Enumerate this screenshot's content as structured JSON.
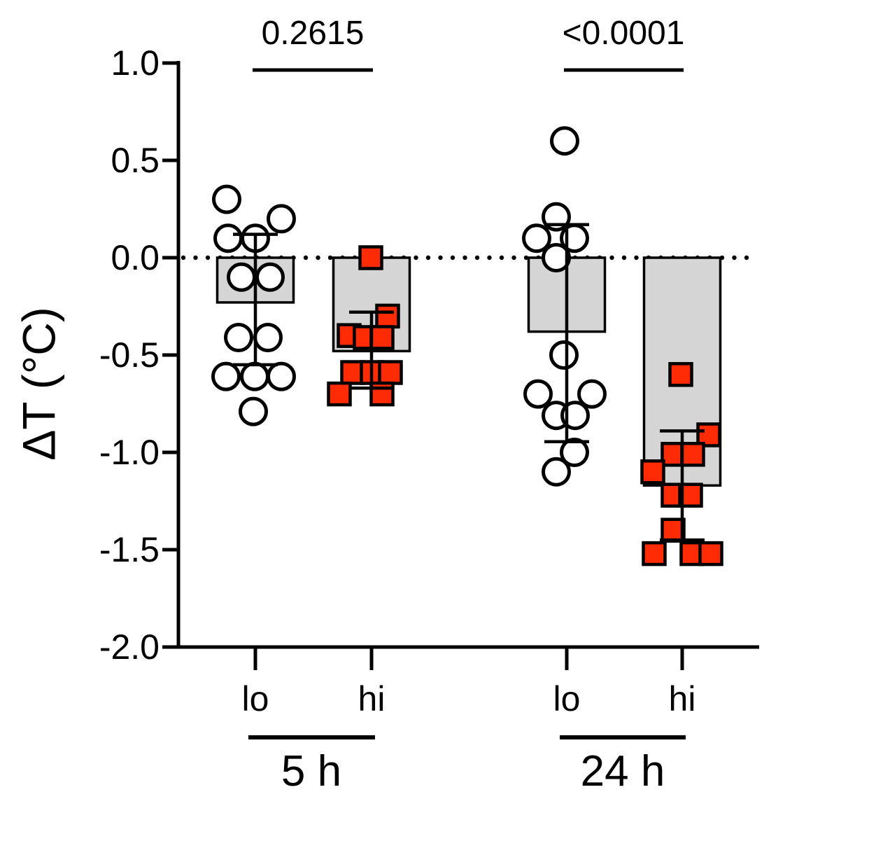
{
  "figure": {
    "background": "#ffffff"
  },
  "chart_data": {
    "type": "bar-scatter",
    "title": "",
    "xlabel": "",
    "ylabel": "ΔT (°C)",
    "ylim": [
      -2.0,
      1.0
    ],
    "yticks": [
      1.0,
      0.5,
      0.0,
      -0.5,
      -1.0,
      -1.5,
      -2.0
    ],
    "ytick_labels": [
      "1.0",
      "0.5",
      "0.0",
      "-0.5",
      "-1.0",
      "-1.5",
      "-2.0"
    ],
    "zero_line_style": "dotted",
    "grid": false,
    "legend": null,
    "colors": {
      "bar_fill": "#d5d5d5",
      "circle_fill": "#ffffff",
      "square_fill": "#ff2b05",
      "stroke": "#000000"
    },
    "groups": [
      {
        "label": "lo",
        "time": "5 h",
        "marker": "circle",
        "mean": -0.23,
        "err_top": 0.12,
        "err_bot": -0.55,
        "points": [
          {
            "v": 0.3,
            "dx": -41
          },
          {
            "v": 0.2,
            "dx": 37
          },
          {
            "v": 0.1,
            "dx": -39
          },
          {
            "v": 0.1,
            "dx": 0
          },
          {
            "v": -0.1,
            "dx": -20
          },
          {
            "v": -0.1,
            "dx": 21
          },
          {
            "v": -0.41,
            "dx": -24
          },
          {
            "v": -0.41,
            "dx": 18
          },
          {
            "v": -0.61,
            "dx": -42
          },
          {
            "v": -0.61,
            "dx": -1
          },
          {
            "v": -0.61,
            "dx": 37
          },
          {
            "v": -0.79,
            "dx": -3
          }
        ]
      },
      {
        "label": "hi",
        "time": "5 h",
        "marker": "square",
        "mean": -0.48,
        "err_top": -0.28,
        "err_bot": -0.67,
        "points": [
          {
            "v": 0.0,
            "dx": -1
          },
          {
            "v": -0.3,
            "dx": 23
          },
          {
            "v": -0.4,
            "dx": -32
          },
          {
            "v": -0.41,
            "dx": -9
          },
          {
            "v": -0.41,
            "dx": 15
          },
          {
            "v": -0.59,
            "dx": -27
          },
          {
            "v": -0.59,
            "dx": 1
          },
          {
            "v": -0.59,
            "dx": 27
          },
          {
            "v": -0.7,
            "dx": -46
          },
          {
            "v": -0.7,
            "dx": 15
          }
        ]
      },
      {
        "label": "lo",
        "time": "24 h",
        "marker": "circle",
        "mean": -0.38,
        "err_top": 0.17,
        "err_bot": -0.945,
        "points": [
          {
            "v": 0.6,
            "dx": -3
          },
          {
            "v": 0.21,
            "dx": -15
          },
          {
            "v": 0.1,
            "dx": -43
          },
          {
            "v": 0.1,
            "dx": 11
          },
          {
            "v": 0.0,
            "dx": -15
          },
          {
            "v": -0.5,
            "dx": -4
          },
          {
            "v": -0.7,
            "dx": -41
          },
          {
            "v": -0.7,
            "dx": 36
          },
          {
            "v": -0.81,
            "dx": -15
          },
          {
            "v": -0.81,
            "dx": 12
          },
          {
            "v": -1.0,
            "dx": 11
          },
          {
            "v": -1.1,
            "dx": -15
          }
        ]
      },
      {
        "label": "hi",
        "time": "24 h",
        "marker": "square",
        "mean": -1.17,
        "err_top": -0.89,
        "err_bot": -1.45,
        "points": [
          {
            "v": -0.6,
            "dx": -2
          },
          {
            "v": -0.91,
            "dx": 38
          },
          {
            "v": -1.01,
            "dx": -13
          },
          {
            "v": -1.01,
            "dx": 15
          },
          {
            "v": -1.1,
            "dx": -42
          },
          {
            "v": -1.22,
            "dx": -13
          },
          {
            "v": -1.22,
            "dx": 12
          },
          {
            "v": -1.4,
            "dx": -13
          },
          {
            "v": -1.52,
            "dx": -40
          },
          {
            "v": -1.52,
            "dx": 14
          },
          {
            "v": -1.52,
            "dx": 41
          }
        ]
      }
    ],
    "comparisons": [
      {
        "p_label": "0.2615",
        "group_a": 0,
        "group_b": 1
      },
      {
        "p_label": "<0.0001",
        "group_a": 2,
        "group_b": 3
      }
    ],
    "time_groups": [
      {
        "label": "5 h",
        "groups": [
          0,
          1
        ]
      },
      {
        "label": "24 h",
        "groups": [
          2,
          3
        ]
      }
    ]
  }
}
